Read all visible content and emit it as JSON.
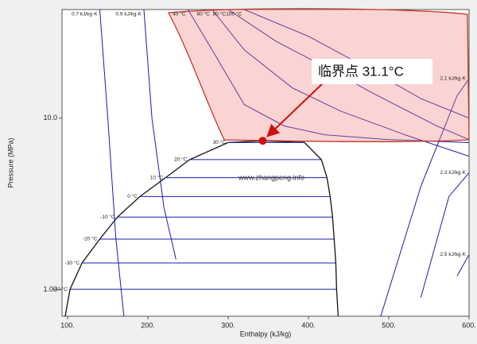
{
  "chart_data": {
    "type": "line",
    "x_label": "Enthalpy (kJ/kg)",
    "y_label": "Pressure (MPa)",
    "xlim": [
      93,
      600
    ],
    "ylim": [
      0.7,
      43
    ],
    "log_y": true,
    "xticks": [
      {
        "value": 100,
        "label": "100."
      },
      {
        "value": 200,
        "label": "200."
      },
      {
        "value": 300,
        "label": "300."
      },
      {
        "value": 400,
        "label": "400."
      },
      {
        "value": 500,
        "label": "500."
      },
      {
        "value": 600,
        "label": "600."
      }
    ],
    "yticks": [
      {
        "value": 1,
        "label": "1.00"
      },
      {
        "value": 10,
        "label": "10.0"
      }
    ],
    "watermark": "www.zhangpeng.info",
    "annotation": "临界点 31.1°C",
    "critical_point": {
      "x": 343,
      "y": 7.38,
      "color": "#cc1111"
    },
    "series": [
      {
        "color": "#111111",
        "x": [
          97,
          103,
          118,
          140,
          162,
          190,
          222,
          252,
          300,
          343,
          395,
          416,
          423,
          427,
          430,
          432,
          434,
          435,
          437
        ],
        "values": [
          0.7,
          1.005,
          1.43,
          1.97,
          2.65,
          3.49,
          4.5,
          5.73,
          7.21,
          7.38,
          7.21,
          5.73,
          4.5,
          3.49,
          2.65,
          1.97,
          1.43,
          1.005,
          0.7
        ]
      },
      {
        "name": "-40 °C",
        "color": "#1c1ca8",
        "x": [
          103,
          435
        ],
        "values": [
          1.005,
          1.005
        ]
      },
      {
        "name": "-30 °C",
        "color": "#1c1ca8",
        "x": [
          118,
          434
        ],
        "values": [
          1.43,
          1.43
        ]
      },
      {
        "name": "-20 °C",
        "color": "#1c1ca8",
        "x": [
          140,
          432
        ],
        "values": [
          1.97,
          1.97
        ]
      },
      {
        "name": "-10 °C",
        "color": "#1c1ca8",
        "x": [
          162,
          430
        ],
        "values": [
          2.65,
          2.65
        ]
      },
      {
        "name": "0 °C",
        "color": "#1c1ca8",
        "x": [
          190,
          427
        ],
        "values": [
          3.49,
          3.49
        ]
      },
      {
        "name": "10 °C",
        "color": "#1c1ca8",
        "x": [
          222,
          423
        ],
        "values": [
          4.5,
          4.5
        ]
      },
      {
        "name": "20 °C",
        "color": "#1c1ca8",
        "x": [
          252,
          416
        ],
        "values": [
          5.73,
          5.73
        ]
      },
      {
        "name": "30 °C",
        "color": "#1c1ca8",
        "x": [
          300,
          395
        ],
        "values": [
          7.21,
          7.21
        ]
      },
      {
        "name": "0.7 kJ/kg·K",
        "color": "#1c1ca8",
        "x": [
          140,
          150,
          160,
          170
        ],
        "values": [
          43,
          10,
          2,
          0.7
        ]
      },
      {
        "name": "0.9 kJ/kg·K",
        "color": "#1c1ca8",
        "x": [
          195,
          205,
          220,
          235
        ],
        "values": [
          43,
          10,
          3,
          1.5
        ]
      },
      {
        "name": "40 °C",
        "color": "#1c1ca8",
        "x": [
          250,
          280,
          320,
          370,
          420,
          500,
          600
        ],
        "values": [
          43,
          25,
          12,
          9,
          8,
          7.5,
          7.2
        ]
      },
      {
        "name": "60 °C",
        "color": "#1c1ca8",
        "x": [
          280,
          320,
          380,
          440,
          520,
          600
        ],
        "values": [
          43,
          25,
          15,
          11,
          8,
          6
        ]
      },
      {
        "name": "80 °C",
        "color": "#1c1ca8",
        "x": [
          300,
          360,
          420,
          480,
          560,
          600
        ],
        "values": [
          43,
          28,
          20,
          14,
          9,
          7.5
        ]
      },
      {
        "name": "100 °C",
        "color": "#1c1ca8",
        "x": [
          320,
          400,
          470,
          540,
          600
        ],
        "values": [
          43,
          30,
          20,
          13,
          10
        ]
      },
      {
        "name": "2.1 kJ/kg·K",
        "color": "#1c1ca8",
        "x": [
          600,
          585,
          540,
          490
        ],
        "values": [
          17,
          13.5,
          4,
          0.7
        ]
      },
      {
        "name": "2.3 kJ/kg·K",
        "color": "#1c1ca8",
        "x": [
          600,
          575,
          540
        ],
        "values": [
          4.8,
          3.5,
          0.9
        ]
      },
      {
        "name": "2.5 kJ/kg·K",
        "color": "#1c1ca8",
        "x": [
          600,
          585
        ],
        "values": [
          1.6,
          1.2
        ]
      }
    ]
  }
}
